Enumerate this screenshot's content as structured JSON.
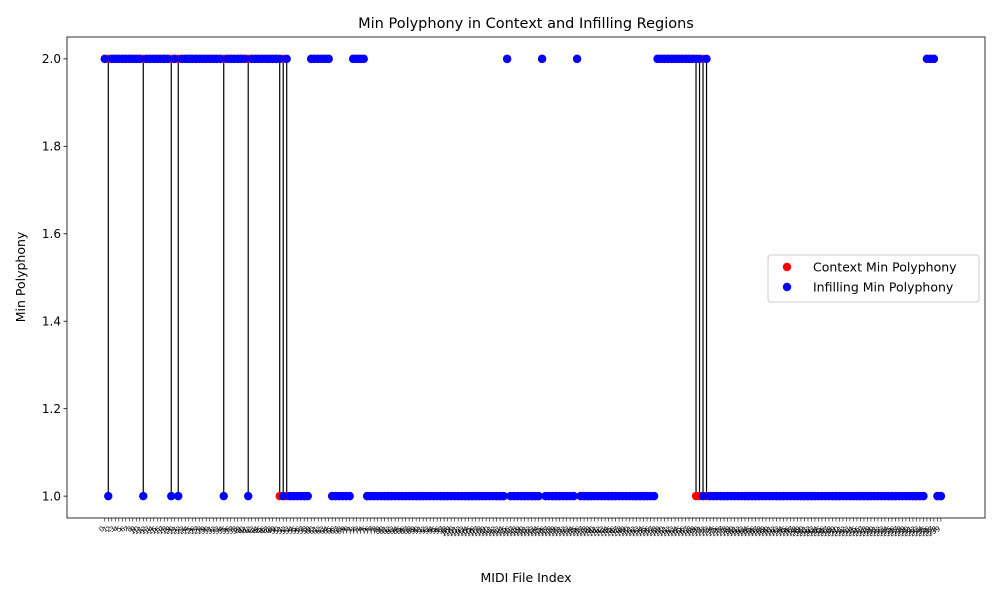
{
  "chart_data": {
    "type": "scatter",
    "title": "Min Polyphony in Context and Infilling Regions",
    "xlabel": "MIDI File Index",
    "ylabel": "Min Polyphony",
    "ylim": [
      0.95,
      2.05
    ],
    "yticks": [
      1.0,
      1.2,
      1.4,
      1.6,
      1.8,
      2.0
    ],
    "ytick_labels": [
      "1.0",
      "1.2",
      "1.4",
      "1.6",
      "1.8",
      "2.0"
    ],
    "x_count": 240,
    "xlim": [
      -10.8,
      251.6
    ],
    "grid": false,
    "legend_position": "center-right",
    "series": [
      {
        "name": "Context Min Polyphony",
        "color": "#ff0000",
        "runs": [
          {
            "from": 0,
            "to": 49,
            "value": 2
          },
          {
            "from": 50,
            "to": 50,
            "value": 1
          },
          {
            "from": 51,
            "to": 51,
            "value": 2
          },
          {
            "from": 52,
            "to": 58,
            "value": 1
          },
          {
            "from": 59,
            "to": 64,
            "value": 2
          },
          {
            "from": 65,
            "to": 70,
            "value": 1
          },
          {
            "from": 71,
            "to": 74,
            "value": 2
          },
          {
            "from": 75,
            "to": 114,
            "value": 1
          },
          {
            "from": 115,
            "to": 115,
            "value": 2
          },
          {
            "from": 116,
            "to": 124,
            "value": 1
          },
          {
            "from": 125,
            "to": 125,
            "value": 2
          },
          {
            "from": 126,
            "to": 134,
            "value": 1
          },
          {
            "from": 135,
            "to": 135,
            "value": 2
          },
          {
            "from": 136,
            "to": 157,
            "value": 1
          },
          {
            "from": 158,
            "to": 168,
            "value": 2
          },
          {
            "from": 169,
            "to": 170,
            "value": 1
          },
          {
            "from": 171,
            "to": 171,
            "value": 2
          },
          {
            "from": 172,
            "to": 234,
            "value": 1
          },
          {
            "from": 235,
            "to": 237,
            "value": 2
          },
          {
            "from": 238,
            "to": 239,
            "value": 1
          }
        ]
      },
      {
        "name": "Infilling Min Polyphony",
        "color": "#0000ff",
        "runs": [
          {
            "from": 0,
            "to": 0,
            "value": 2
          },
          {
            "from": 1,
            "to": 1,
            "value": 1
          },
          {
            "from": 2,
            "to": 10,
            "value": 2
          },
          {
            "from": 11,
            "to": 11,
            "value": 1
          },
          {
            "from": 12,
            "to": 18,
            "value": 2
          },
          {
            "from": 19,
            "to": 19,
            "value": 1
          },
          {
            "from": 20,
            "to": 20,
            "value": 2
          },
          {
            "from": 21,
            "to": 21,
            "value": 1
          },
          {
            "from": 22,
            "to": 33,
            "value": 2
          },
          {
            "from": 34,
            "to": 34,
            "value": 1
          },
          {
            "from": 35,
            "to": 40,
            "value": 2
          },
          {
            "from": 41,
            "to": 41,
            "value": 1
          },
          {
            "from": 42,
            "to": 50,
            "value": 2
          },
          {
            "from": 51,
            "to": 51,
            "value": 1
          },
          {
            "from": 52,
            "to": 52,
            "value": 2
          },
          {
            "from": 53,
            "to": 58,
            "value": 1
          },
          {
            "from": 59,
            "to": 64,
            "value": 2
          },
          {
            "from": 65,
            "to": 70,
            "value": 1
          },
          {
            "from": 71,
            "to": 74,
            "value": 2
          },
          {
            "from": 75,
            "to": 114,
            "value": 1
          },
          {
            "from": 115,
            "to": 115,
            "value": 2
          },
          {
            "from": 116,
            "to": 124,
            "value": 1
          },
          {
            "from": 125,
            "to": 125,
            "value": 2
          },
          {
            "from": 126,
            "to": 134,
            "value": 1
          },
          {
            "from": 135,
            "to": 135,
            "value": 2
          },
          {
            "from": 136,
            "to": 157,
            "value": 1
          },
          {
            "from": 158,
            "to": 170,
            "value": 2
          },
          {
            "from": 171,
            "to": 171,
            "value": 1
          },
          {
            "from": 172,
            "to": 172,
            "value": 2
          },
          {
            "from": 173,
            "to": 234,
            "value": 1
          },
          {
            "from": 235,
            "to": 237,
            "value": 2
          },
          {
            "from": 238,
            "to": 239,
            "value": 1
          }
        ]
      }
    ]
  }
}
